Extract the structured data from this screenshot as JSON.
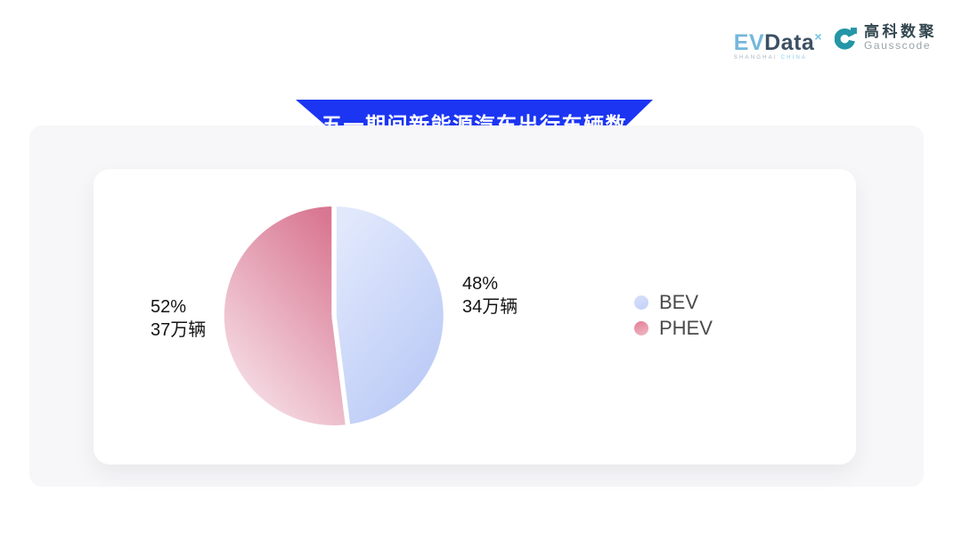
{
  "header": {
    "evdata": {
      "ev": "EV",
      "data": "Data",
      "sup": "×",
      "tagline_left": "SHANGHAI",
      "tagline_right": "CHINA"
    },
    "gausscode": {
      "name_cn": "高科数聚",
      "name_en": "Gausscode"
    }
  },
  "banner": {
    "title": "五一期间新能源汽车出行车辆数"
  },
  "chart_data": {
    "type": "pie",
    "title": "五一期间新能源汽车出行车辆数",
    "unit": "万辆",
    "start_angle": "top",
    "direction": "clockwise",
    "legend_position": "right-middle",
    "slices": [
      {
        "name": "BEV",
        "percent": 48,
        "value": 34,
        "percent_label": "48%",
        "value_label": "34万辆",
        "gradient": [
          "#e1e8fc",
          "#b9c9f6"
        ]
      },
      {
        "name": "PHEV",
        "percent": 52,
        "value": 37,
        "percent_label": "52%",
        "value_label": "37万辆",
        "gradient": [
          "#d97691",
          "#f7e3ea"
        ]
      }
    ]
  },
  "legend": {
    "items": [
      {
        "label": "BEV",
        "dot_gradient": [
          "#d6e0fb",
          "#c3d1f8"
        ]
      },
      {
        "label": "PHEV",
        "dot_gradient": [
          "#e27d95",
          "#f0bac6"
        ]
      }
    ]
  },
  "colors": {
    "banner_blue": "#1b35f2",
    "panel_bg": "#f7f7f9",
    "card_bg": "#ffffff",
    "gauss_teal": "#2496a6",
    "evdata_lightblue": "#74b7dc",
    "evdata_dark": "#3c5063"
  }
}
